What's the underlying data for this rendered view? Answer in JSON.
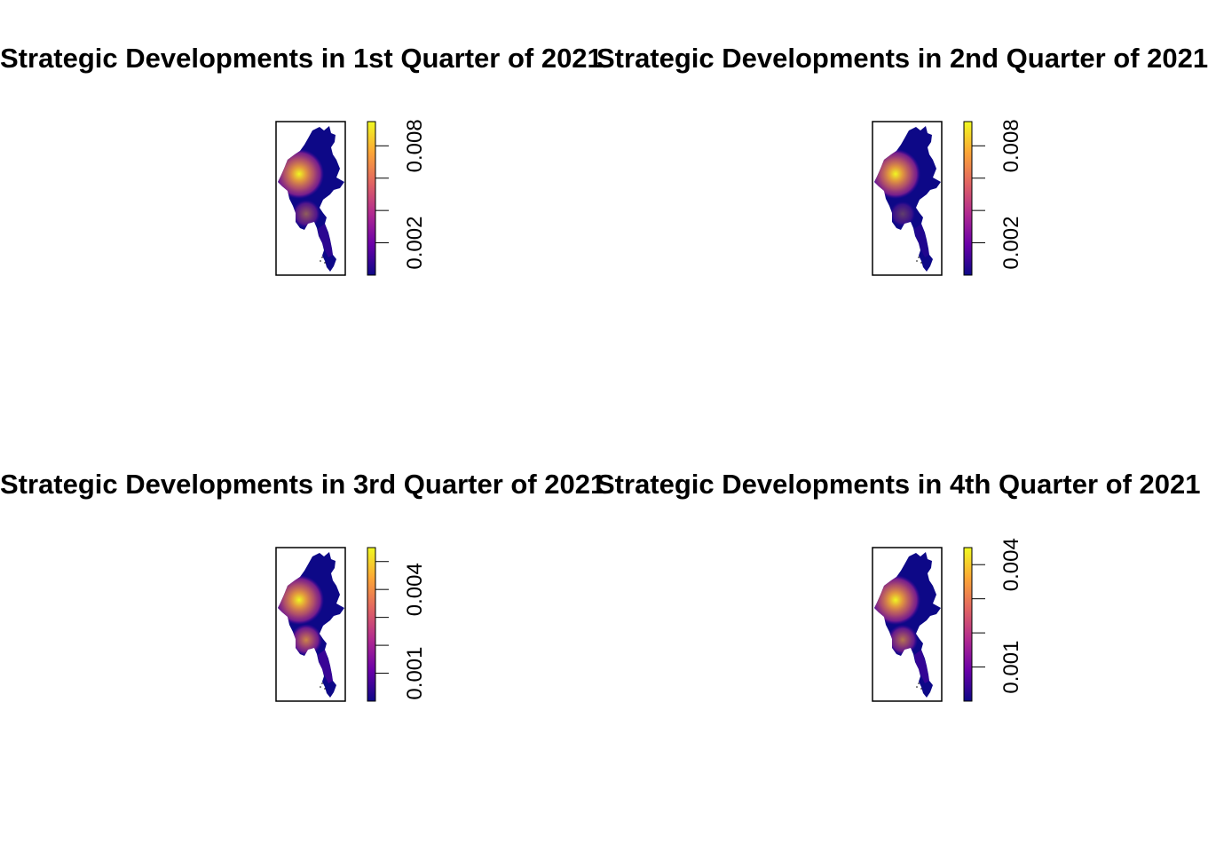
{
  "chart_data": [
    {
      "type": "heatmap",
      "title": "Strategic Developments in 1st Quarter of 2021",
      "colorbar": {
        "ticks": [
          "0.002",
          "0.008"
        ],
        "range": [
          0,
          0.0095
        ]
      },
      "colors": [
        "#0d0887",
        "#6a00a8",
        "#b12a90",
        "#e16462",
        "#fca636",
        "#f0f921"
      ],
      "hotspots": [
        {
          "label": "central",
          "intensity": 1.0
        },
        {
          "label": "south",
          "intensity": 0.55
        }
      ]
    },
    {
      "type": "heatmap",
      "title": "Strategic Developments in 2nd Quarter of 2021",
      "colorbar": {
        "ticks": [
          "0.002",
          "0.008"
        ],
        "range": [
          0,
          0.0095
        ]
      },
      "colors": [
        "#0d0887",
        "#6a00a8",
        "#b12a90",
        "#e16462",
        "#fca636",
        "#f0f921"
      ],
      "hotspots": [
        {
          "label": "central",
          "intensity": 1.0
        },
        {
          "label": "south",
          "intensity": 0.35
        }
      ]
    },
    {
      "type": "heatmap",
      "title": "Strategic Developments in 3rd Quarter of 2021",
      "colorbar": {
        "ticks": [
          "0.001",
          "0.004"
        ],
        "range": [
          0,
          0.0055
        ]
      },
      "colors": [
        "#0d0887",
        "#6a00a8",
        "#b12a90",
        "#e16462",
        "#fca636",
        "#f0f921"
      ],
      "hotspots": [
        {
          "label": "central",
          "intensity": 1.0
        },
        {
          "label": "south",
          "intensity": 0.8
        }
      ]
    },
    {
      "type": "heatmap",
      "title": "Strategic Developments in 4th Quarter of 2021",
      "colorbar": {
        "ticks": [
          "0.001",
          "0.004"
        ],
        "range": [
          0,
          0.0045
        ]
      },
      "colors": [
        "#0d0887",
        "#6a00a8",
        "#b12a90",
        "#e16462",
        "#fca636",
        "#f0f921"
      ],
      "hotspots": [
        {
          "label": "central",
          "intensity": 1.0
        },
        {
          "label": "south",
          "intensity": 0.7
        }
      ]
    }
  ]
}
